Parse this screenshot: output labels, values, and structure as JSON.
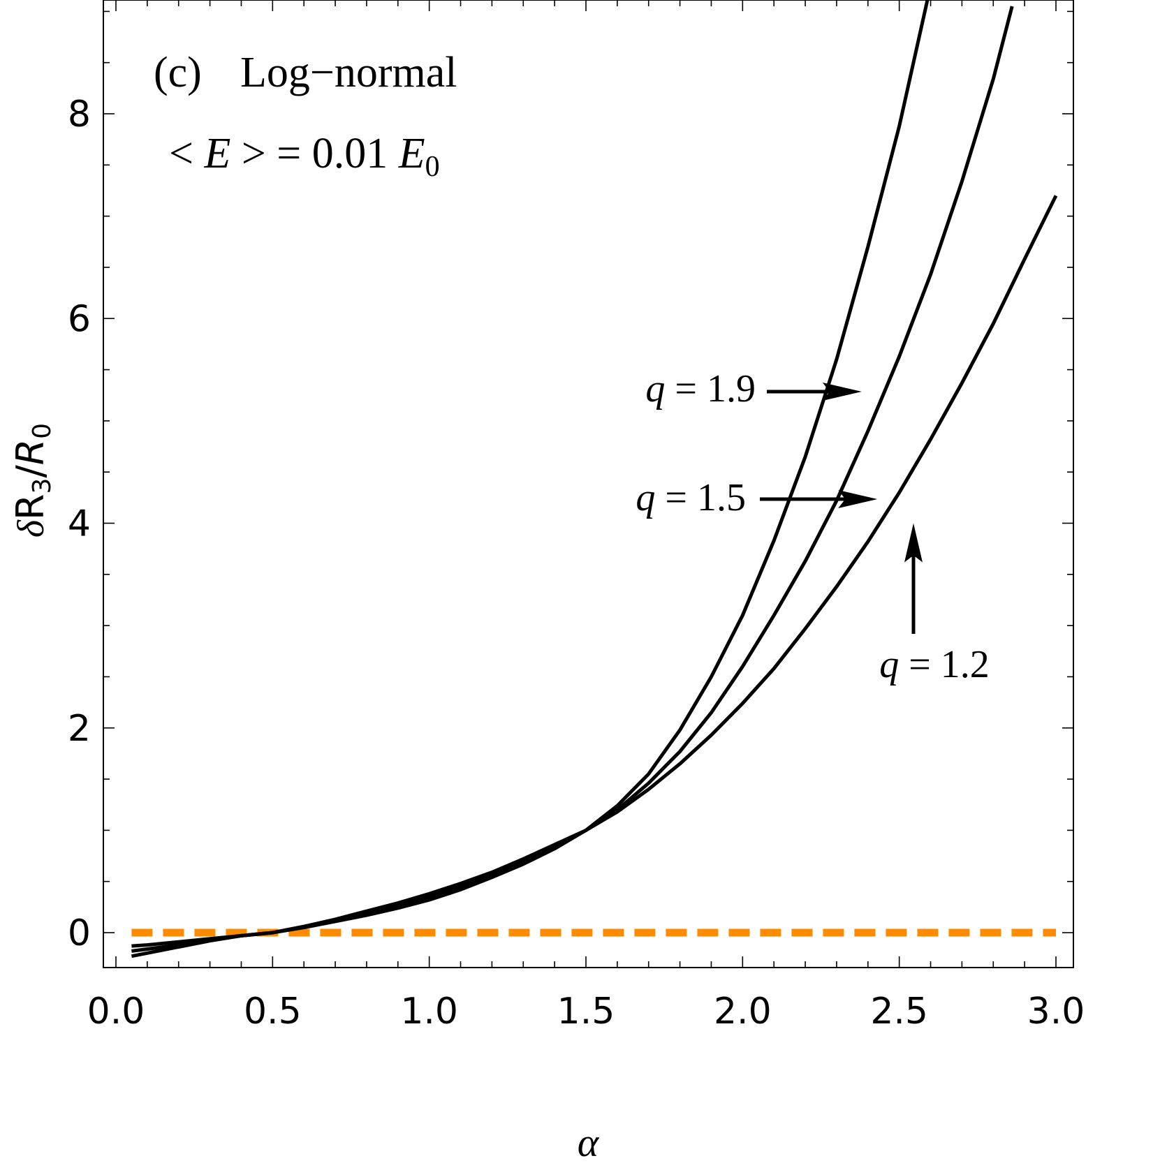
{
  "chart_data": {
    "type": "line",
    "title": "",
    "panel_label": "(c)",
    "panel_title": "Log−normal",
    "condition": {
      "prefix": "< ",
      "var": "E",
      "middle": " >  = 0.01 ",
      "var2": "E",
      "sub": "0"
    },
    "xlabel": "α",
    "ylabel": {
      "delta": "δ",
      "R": "R",
      "sub": "3",
      "slash": "/",
      "R2": "R",
      "sub2": "0"
    },
    "xlim": [
      0.0,
      3.0
    ],
    "ylim": [
      -0.4,
      9.2
    ],
    "xticks": [
      "0.0",
      "0.5",
      "1.0",
      "1.5",
      "2.0",
      "2.5",
      "3.0"
    ],
    "yticks": [
      "0",
      "2",
      "4",
      "6",
      "8"
    ],
    "series": [
      {
        "name": "q = 1.9",
        "x": [
          0.05,
          0.1,
          0.2,
          0.3,
          0.4,
          0.5,
          0.6,
          0.7,
          0.8,
          0.9,
          1.0,
          1.1,
          1.2,
          1.3,
          1.4,
          1.5,
          1.6,
          1.7,
          1.8,
          1.9,
          2.0,
          2.1,
          2.2,
          2.3,
          2.4,
          2.5,
          2.6,
          2.66
        ],
        "y": [
          -0.23,
          -0.2,
          -0.14,
          -0.08,
          -0.03,
          0.0,
          0.05,
          0.11,
          0.17,
          0.24,
          0.32,
          0.42,
          0.54,
          0.67,
          0.82,
          1.0,
          1.24,
          1.55,
          1.98,
          2.5,
          3.1,
          3.83,
          4.65,
          5.6,
          6.7,
          7.88,
          9.25,
          10.2
        ]
      },
      {
        "name": "q = 1.5",
        "x": [
          0.05,
          0.1,
          0.2,
          0.3,
          0.4,
          0.5,
          0.6,
          0.7,
          0.8,
          0.9,
          1.0,
          1.1,
          1.2,
          1.3,
          1.4,
          1.5,
          1.6,
          1.7,
          1.8,
          1.9,
          2.0,
          2.1,
          2.2,
          2.3,
          2.4,
          2.5,
          2.6,
          2.7,
          2.8,
          2.86
        ],
        "y": [
          -0.18,
          -0.16,
          -0.12,
          -0.07,
          -0.03,
          0.0,
          0.06,
          0.12,
          0.19,
          0.27,
          0.35,
          0.45,
          0.56,
          0.69,
          0.83,
          1.0,
          1.2,
          1.46,
          1.77,
          2.15,
          2.6,
          3.1,
          3.63,
          4.22,
          4.9,
          5.63,
          6.43,
          7.34,
          8.34,
          9.05
        ]
      },
      {
        "name": "q = 1.2",
        "x": [
          0.05,
          0.1,
          0.2,
          0.3,
          0.4,
          0.5,
          0.6,
          0.7,
          0.8,
          0.9,
          1.0,
          1.1,
          1.2,
          1.3,
          1.4,
          1.5,
          1.6,
          1.7,
          1.8,
          1.9,
          2.0,
          2.1,
          2.2,
          2.3,
          2.4,
          2.5,
          2.6,
          2.7,
          2.8,
          2.9,
          3.0
        ],
        "y": [
          -0.13,
          -0.12,
          -0.09,
          -0.06,
          -0.03,
          0.0,
          0.06,
          0.13,
          0.21,
          0.29,
          0.38,
          0.48,
          0.59,
          0.72,
          0.86,
          1.0,
          1.18,
          1.4,
          1.65,
          1.93,
          2.24,
          2.58,
          2.97,
          3.38,
          3.82,
          4.3,
          4.82,
          5.37,
          5.95,
          6.58,
          7.2
        ]
      }
    ],
    "reference_line": {
      "y": 0,
      "style": "dashed",
      "color": "#ff8c00"
    },
    "annotations": [
      {
        "var": "q",
        "text": " = 1.9",
        "arrow": "right",
        "points_to": [
          2.38,
          5.3
        ]
      },
      {
        "var": "q",
        "text": " = 1.5",
        "arrow": "right",
        "points_to": [
          2.43,
          4.23
        ]
      },
      {
        "var": "q",
        "text": " = 1.2",
        "arrow": "up",
        "points_to": [
          2.55,
          4.0
        ]
      }
    ],
    "grid": false,
    "legend": "none"
  }
}
